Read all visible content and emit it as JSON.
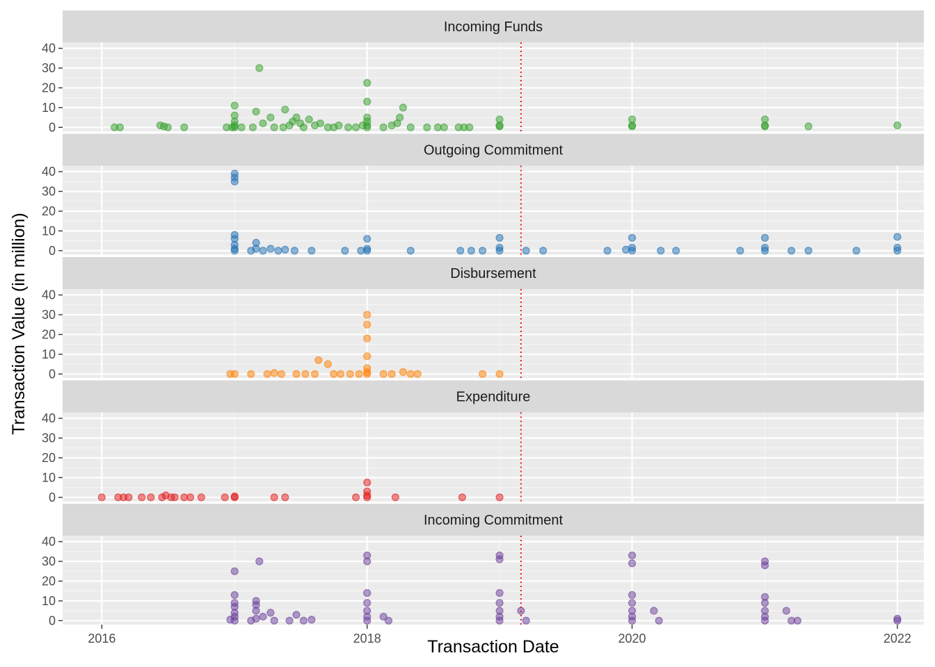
{
  "chart_data": {
    "type": "scatter",
    "xlabel": "Transaction Date",
    "ylabel": "Transaction Value (in million)",
    "x_ticks": [
      "2016",
      "2018",
      "2020",
      "2022"
    ],
    "y_ticks": [
      "0",
      "10",
      "20",
      "30",
      "40"
    ],
    "xlim": [
      "2015-09-15",
      "2022-03-15"
    ],
    "ylim": [
      -2,
      43
    ],
    "grid": true,
    "reference_line": {
      "x": "2019-03-01",
      "color": "#e41a1c",
      "style": "dotted"
    },
    "panels": [
      {
        "label": "Incoming Funds",
        "color": "#33a02c",
        "points": [
          [
            "2016-02-05",
            0
          ],
          [
            "2016-02-20",
            0
          ],
          [
            "2016-06-10",
            1
          ],
          [
            "2016-06-20",
            0.5
          ],
          [
            "2016-07-01",
            0
          ],
          [
            "2016-08-15",
            0
          ],
          [
            "2016-12-10",
            0
          ],
          [
            "2016-12-25",
            0
          ],
          [
            "2017-01-01",
            0
          ],
          [
            "2017-01-01",
            1
          ],
          [
            "2017-01-01",
            3
          ],
          [
            "2017-01-01",
            6
          ],
          [
            "2017-01-01",
            11
          ],
          [
            "2017-01-20",
            0
          ],
          [
            "2017-02-20",
            0
          ],
          [
            "2017-03-01",
            8
          ],
          [
            "2017-03-10",
            30
          ],
          [
            "2017-03-20",
            2
          ],
          [
            "2017-04-10",
            5
          ],
          [
            "2017-04-20",
            0
          ],
          [
            "2017-05-15",
            0
          ],
          [
            "2017-05-20",
            9
          ],
          [
            "2017-06-01",
            1
          ],
          [
            "2017-06-10",
            3
          ],
          [
            "2017-06-20",
            5
          ],
          [
            "2017-07-01",
            2
          ],
          [
            "2017-07-10",
            0
          ],
          [
            "2017-07-25",
            4
          ],
          [
            "2017-08-10",
            1
          ],
          [
            "2017-08-25",
            2
          ],
          [
            "2017-09-15",
            0
          ],
          [
            "2017-10-01",
            0
          ],
          [
            "2017-10-15",
            1
          ],
          [
            "2017-11-10",
            0
          ],
          [
            "2017-12-01",
            0
          ],
          [
            "2017-12-20",
            1
          ],
          [
            "2018-01-01",
            0
          ],
          [
            "2018-01-01",
            1
          ],
          [
            "2018-01-01",
            3
          ],
          [
            "2018-01-01",
            5
          ],
          [
            "2018-01-01",
            13
          ],
          [
            "2018-01-01",
            22.5
          ],
          [
            "2018-02-15",
            0
          ],
          [
            "2018-03-10",
            1
          ],
          [
            "2018-03-25",
            2
          ],
          [
            "2018-04-01",
            5
          ],
          [
            "2018-04-10",
            10
          ],
          [
            "2018-05-01",
            0
          ],
          [
            "2018-06-15",
            0
          ],
          [
            "2018-07-15",
            0
          ],
          [
            "2018-08-01",
            0
          ],
          [
            "2018-09-10",
            0
          ],
          [
            "2018-09-25",
            0
          ],
          [
            "2018-10-10",
            0
          ],
          [
            "2019-01-01",
            0.5
          ],
          [
            "2019-01-01",
            1
          ],
          [
            "2019-01-01",
            4
          ],
          [
            "2020-01-01",
            0.5
          ],
          [
            "2020-01-01",
            1
          ],
          [
            "2020-01-01",
            4
          ],
          [
            "2021-01-01",
            0.5
          ],
          [
            "2021-01-01",
            1
          ],
          [
            "2021-01-01",
            4
          ],
          [
            "2021-05-01",
            0.5
          ],
          [
            "2022-01-01",
            1
          ]
        ]
      },
      {
        "label": "Outgoing Commitment",
        "color": "#1f6fb4",
        "points": [
          [
            "2017-01-01",
            0
          ],
          [
            "2017-01-01",
            1
          ],
          [
            "2017-01-01",
            3
          ],
          [
            "2017-01-01",
            6
          ],
          [
            "2017-01-01",
            8
          ],
          [
            "2017-01-01",
            35
          ],
          [
            "2017-01-01",
            37
          ],
          [
            "2017-01-01",
            39
          ],
          [
            "2017-02-15",
            0
          ],
          [
            "2017-03-01",
            1
          ],
          [
            "2017-03-01",
            4
          ],
          [
            "2017-03-20",
            0
          ],
          [
            "2017-04-10",
            1
          ],
          [
            "2017-05-01",
            0
          ],
          [
            "2017-05-20",
            0.5
          ],
          [
            "2017-06-15",
            0
          ],
          [
            "2017-08-01",
            0
          ],
          [
            "2017-11-01",
            0
          ],
          [
            "2017-12-15",
            0
          ],
          [
            "2018-01-01",
            0
          ],
          [
            "2018-01-01",
            1
          ],
          [
            "2018-01-01",
            6
          ],
          [
            "2018-05-01",
            0
          ],
          [
            "2018-09-15",
            0
          ],
          [
            "2018-10-15",
            0
          ],
          [
            "2018-11-15",
            0
          ],
          [
            "2019-01-01",
            0
          ],
          [
            "2019-01-01",
            1.5
          ],
          [
            "2019-01-01",
            6.5
          ],
          [
            "2019-03-15",
            0
          ],
          [
            "2019-05-01",
            0
          ],
          [
            "2019-10-25",
            0
          ],
          [
            "2019-12-15",
            0.5
          ],
          [
            "2020-01-01",
            0
          ],
          [
            "2020-01-01",
            1.5
          ],
          [
            "2020-01-01",
            6.5
          ],
          [
            "2020-03-20",
            0
          ],
          [
            "2020-05-01",
            0
          ],
          [
            "2020-10-25",
            0
          ],
          [
            "2021-01-01",
            0
          ],
          [
            "2021-01-01",
            1.5
          ],
          [
            "2021-01-01",
            6.5
          ],
          [
            "2021-03-15",
            0
          ],
          [
            "2021-05-01",
            0
          ],
          [
            "2021-09-10",
            0
          ],
          [
            "2022-01-01",
            0
          ],
          [
            "2022-01-01",
            1.5
          ],
          [
            "2022-01-01",
            7
          ]
        ]
      },
      {
        "label": "Disbursement",
        "color": "#ff7f00",
        "points": [
          [
            "2016-12-20",
            0
          ],
          [
            "2017-01-01",
            0
          ],
          [
            "2017-02-15",
            0
          ],
          [
            "2017-04-01",
            0
          ],
          [
            "2017-04-20",
            0.5
          ],
          [
            "2017-05-10",
            0
          ],
          [
            "2017-06-20",
            0
          ],
          [
            "2017-07-15",
            0
          ],
          [
            "2017-08-10",
            0
          ],
          [
            "2017-08-20",
            7
          ],
          [
            "2017-09-15",
            5
          ],
          [
            "2017-10-01",
            0
          ],
          [
            "2017-10-20",
            0
          ],
          [
            "2017-11-15",
            0
          ],
          [
            "2017-12-10",
            0
          ],
          [
            "2018-01-01",
            0
          ],
          [
            "2018-01-01",
            1
          ],
          [
            "2018-01-01",
            3
          ],
          [
            "2018-01-01",
            9
          ],
          [
            "2018-01-01",
            18
          ],
          [
            "2018-01-01",
            25
          ],
          [
            "2018-01-01",
            30
          ],
          [
            "2018-02-15",
            0
          ],
          [
            "2018-03-10",
            0
          ],
          [
            "2018-04-10",
            1
          ],
          [
            "2018-05-01",
            0
          ],
          [
            "2018-05-20",
            0
          ],
          [
            "2018-11-15",
            0
          ],
          [
            "2019-01-01",
            0
          ]
        ]
      },
      {
        "label": "Expenditure",
        "color": "#e31a1c",
        "points": [
          [
            "2016-01-01",
            0
          ],
          [
            "2016-02-15",
            0
          ],
          [
            "2016-03-01",
            0
          ],
          [
            "2016-03-15",
            0
          ],
          [
            "2016-04-20",
            0
          ],
          [
            "2016-05-15",
            0
          ],
          [
            "2016-06-15",
            0
          ],
          [
            "2016-06-25",
            1
          ],
          [
            "2016-07-10",
            0
          ],
          [
            "2016-07-20",
            0
          ],
          [
            "2016-08-15",
            0
          ],
          [
            "2016-09-01",
            0
          ],
          [
            "2016-10-01",
            0
          ],
          [
            "2016-12-05",
            0
          ],
          [
            "2017-01-01",
            0
          ],
          [
            "2017-01-01",
            0.5
          ],
          [
            "2017-04-20",
            0
          ],
          [
            "2017-05-20",
            0
          ],
          [
            "2017-12-01",
            0
          ],
          [
            "2018-01-01",
            0
          ],
          [
            "2018-01-01",
            1
          ],
          [
            "2018-01-01",
            3
          ],
          [
            "2018-01-01",
            7.5
          ],
          [
            "2018-03-20",
            0
          ],
          [
            "2018-09-20",
            0
          ],
          [
            "2019-01-01",
            0
          ]
        ]
      },
      {
        "label": "Incoming Commitment",
        "color": "#6a3d9a",
        "points": [
          [
            "2016-12-20",
            0.5
          ],
          [
            "2017-01-01",
            0
          ],
          [
            "2017-01-01",
            2
          ],
          [
            "2017-01-01",
            4
          ],
          [
            "2017-01-01",
            7
          ],
          [
            "2017-01-01",
            9
          ],
          [
            "2017-01-01",
            13
          ],
          [
            "2017-01-01",
            25
          ],
          [
            "2017-02-15",
            0
          ],
          [
            "2017-03-01",
            1
          ],
          [
            "2017-03-01",
            5
          ],
          [
            "2017-03-01",
            8
          ],
          [
            "2017-03-01",
            10
          ],
          [
            "2017-03-10",
            30
          ],
          [
            "2017-03-20",
            2
          ],
          [
            "2017-04-10",
            4
          ],
          [
            "2017-04-20",
            0
          ],
          [
            "2017-06-01",
            0
          ],
          [
            "2017-06-20",
            3
          ],
          [
            "2017-07-10",
            0
          ],
          [
            "2017-08-01",
            0.5
          ],
          [
            "2018-01-01",
            0
          ],
          [
            "2018-01-01",
            2
          ],
          [
            "2018-01-01",
            5
          ],
          [
            "2018-01-01",
            9
          ],
          [
            "2018-01-01",
            14
          ],
          [
            "2018-01-01",
            30
          ],
          [
            "2018-01-01",
            33
          ],
          [
            "2018-03-01",
            0
          ],
          [
            "2018-02-15",
            2
          ],
          [
            "2019-01-01",
            0
          ],
          [
            "2019-01-01",
            2
          ],
          [
            "2019-01-01",
            5
          ],
          [
            "2019-01-01",
            9
          ],
          [
            "2019-01-01",
            14
          ],
          [
            "2019-01-01",
            31
          ],
          [
            "2019-01-01",
            33
          ],
          [
            "2019-03-01",
            5
          ],
          [
            "2019-03-15",
            0
          ],
          [
            "2020-01-01",
            0
          ],
          [
            "2020-01-01",
            2
          ],
          [
            "2020-01-01",
            5
          ],
          [
            "2020-01-01",
            9
          ],
          [
            "2020-01-01",
            13
          ],
          [
            "2020-01-01",
            29
          ],
          [
            "2020-01-01",
            33
          ],
          [
            "2020-03-01",
            5
          ],
          [
            "2020-03-15",
            0
          ],
          [
            "2021-01-01",
            0
          ],
          [
            "2021-01-01",
            2
          ],
          [
            "2021-01-01",
            5
          ],
          [
            "2021-01-01",
            9
          ],
          [
            "2021-01-01",
            12
          ],
          [
            "2021-01-01",
            28
          ],
          [
            "2021-01-01",
            30
          ],
          [
            "2021-03-01",
            5
          ],
          [
            "2021-03-15",
            0
          ],
          [
            "2021-04-01",
            0
          ],
          [
            "2022-01-01",
            0
          ],
          [
            "2022-01-01",
            1
          ]
        ]
      }
    ]
  }
}
